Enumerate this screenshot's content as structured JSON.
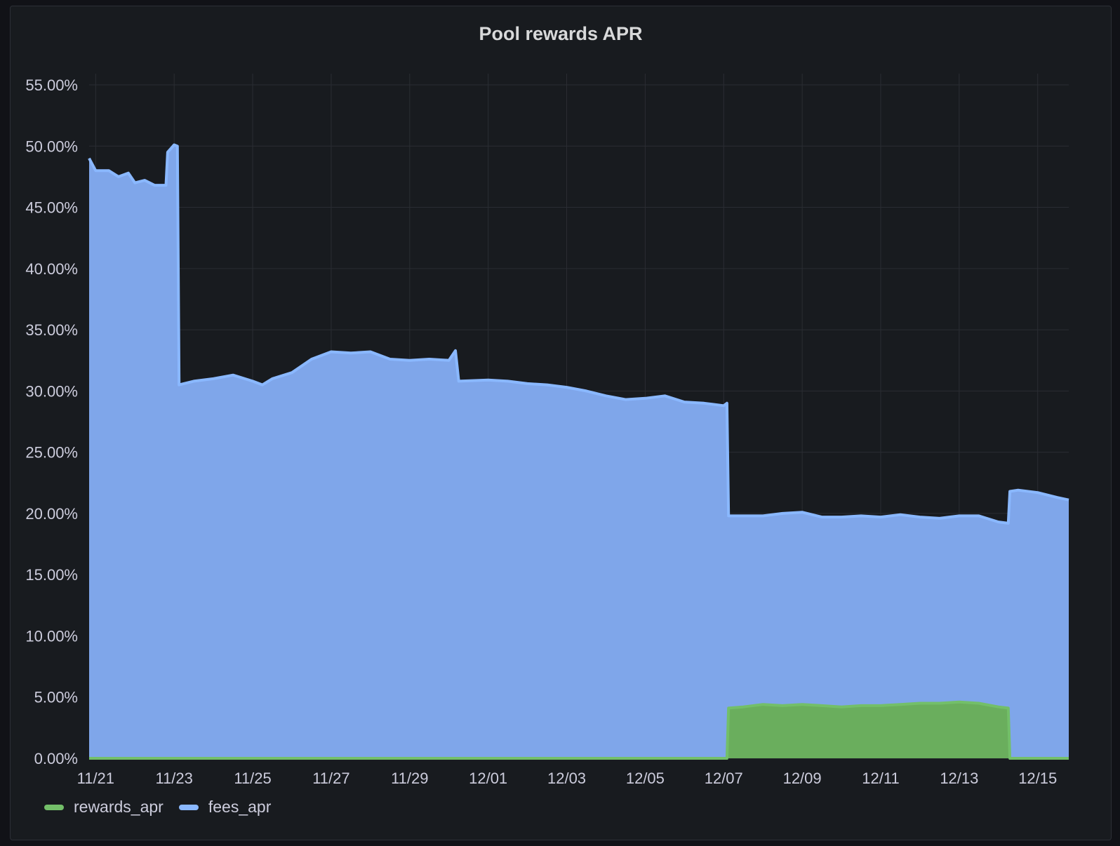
{
  "panel": {
    "title": "Pool rewards APR"
  },
  "colors": {
    "background": "#181b1f",
    "grid": "#2a2d33",
    "text": "#ccccdc",
    "fees_fill": "#7fa6ea",
    "fees_line": "#8ab8ff",
    "rewards_fill": "#6aae5d",
    "rewards_line": "#73bf69"
  },
  "chart_data": {
    "type": "area",
    "title": "Pool rewards APR",
    "xlabel": "",
    "ylabel": "",
    "x_ticks": [
      "11/21",
      "11/23",
      "11/25",
      "11/27",
      "11/29",
      "12/01",
      "12/03",
      "12/05",
      "12/07",
      "12/09",
      "12/11",
      "12/13",
      "12/15"
    ],
    "y_ticks": [
      "0.00%",
      "5.00%",
      "10.00%",
      "15.00%",
      "20.00%",
      "25.00%",
      "30.00%",
      "35.00%",
      "40.00%",
      "45.00%",
      "50.00%",
      "55.00%"
    ],
    "ylim": [
      0,
      55
    ],
    "xlim": [
      "2023-11-20T20:00",
      "2023-12-15T19:00"
    ],
    "x_axis": "date (MM/DD)",
    "y_unit": "%",
    "grid": true,
    "legend_position": "bottom-left",
    "series": [
      {
        "name": "fees_apr",
        "color": "#7fa6ea",
        "points": [
          [
            "2023-11-20T20:00",
            49.0
          ],
          [
            "2023-11-21T00:00",
            48.0
          ],
          [
            "2023-11-21T08:00",
            48.0
          ],
          [
            "2023-11-21T14:00",
            47.5
          ],
          [
            "2023-11-21T20:00",
            47.8
          ],
          [
            "2023-11-22T00:00",
            47.0
          ],
          [
            "2023-11-22T06:00",
            47.2
          ],
          [
            "2023-11-22T12:00",
            46.8
          ],
          [
            "2023-11-22T19:00",
            46.8
          ],
          [
            "2023-11-22T20:00",
            49.5
          ],
          [
            "2023-11-23T00:00",
            50.1
          ],
          [
            "2023-11-23T02:00",
            50.0
          ],
          [
            "2023-11-23T03:00",
            30.5
          ],
          [
            "2023-11-23T12:00",
            30.8
          ],
          [
            "2023-11-24T00:00",
            31.0
          ],
          [
            "2023-11-24T12:00",
            31.3
          ],
          [
            "2023-11-25T00:00",
            30.8
          ],
          [
            "2023-11-25T06:00",
            30.5
          ],
          [
            "2023-11-25T12:00",
            31.0
          ],
          [
            "2023-11-26T00:00",
            31.5
          ],
          [
            "2023-11-26T12:00",
            32.6
          ],
          [
            "2023-11-27T00:00",
            33.2
          ],
          [
            "2023-11-27T12:00",
            33.1
          ],
          [
            "2023-11-28T00:00",
            33.2
          ],
          [
            "2023-11-28T12:00",
            32.6
          ],
          [
            "2023-11-29T00:00",
            32.5
          ],
          [
            "2023-11-29T12:00",
            32.6
          ],
          [
            "2023-11-30T00:00",
            32.5
          ],
          [
            "2023-11-30T04:00",
            33.3
          ],
          [
            "2023-11-30T06:00",
            30.8
          ],
          [
            "2023-12-01T00:00",
            30.9
          ],
          [
            "2023-12-01T12:00",
            30.8
          ],
          [
            "2023-12-02T00:00",
            30.6
          ],
          [
            "2023-12-02T12:00",
            30.5
          ],
          [
            "2023-12-03T00:00",
            30.3
          ],
          [
            "2023-12-03T12:00",
            30.0
          ],
          [
            "2023-12-04T00:00",
            29.6
          ],
          [
            "2023-12-04T12:00",
            29.3
          ],
          [
            "2023-12-05T00:00",
            29.4
          ],
          [
            "2023-12-05T12:00",
            29.6
          ],
          [
            "2023-12-06T00:00",
            29.1
          ],
          [
            "2023-12-06T12:00",
            29.0
          ],
          [
            "2023-12-07T00:00",
            28.8
          ],
          [
            "2023-12-07T02:00",
            29.0
          ],
          [
            "2023-12-07T03:00",
            19.8
          ],
          [
            "2023-12-07T12:00",
            19.8
          ],
          [
            "2023-12-08T00:00",
            19.8
          ],
          [
            "2023-12-08T12:00",
            20.0
          ],
          [
            "2023-12-09T00:00",
            20.1
          ],
          [
            "2023-12-09T12:00",
            19.7
          ],
          [
            "2023-12-10T00:00",
            19.7
          ],
          [
            "2023-12-10T12:00",
            19.8
          ],
          [
            "2023-12-11T00:00",
            19.7
          ],
          [
            "2023-12-11T12:00",
            19.9
          ],
          [
            "2023-12-12T00:00",
            19.7
          ],
          [
            "2023-12-12T12:00",
            19.6
          ],
          [
            "2023-12-13T00:00",
            19.8
          ],
          [
            "2023-12-13T12:00",
            19.8
          ],
          [
            "2023-12-14T00:00",
            19.3
          ],
          [
            "2023-12-14T06:00",
            19.2
          ],
          [
            "2023-12-14T07:00",
            21.8
          ],
          [
            "2023-12-14T12:00",
            21.9
          ],
          [
            "2023-12-15T00:00",
            21.7
          ],
          [
            "2023-12-15T12:00",
            21.3
          ],
          [
            "2023-12-15T19:00",
            21.1
          ]
        ]
      },
      {
        "name": "rewards_apr",
        "color": "#6aae5d",
        "points": [
          [
            "2023-11-20T20:00",
            0.0
          ],
          [
            "2023-12-07T02:00",
            0.0
          ],
          [
            "2023-12-07T03:00",
            4.1
          ],
          [
            "2023-12-07T12:00",
            4.2
          ],
          [
            "2023-12-08T00:00",
            4.4
          ],
          [
            "2023-12-08T12:00",
            4.3
          ],
          [
            "2023-12-09T00:00",
            4.4
          ],
          [
            "2023-12-09T12:00",
            4.3
          ],
          [
            "2023-12-10T00:00",
            4.2
          ],
          [
            "2023-12-10T12:00",
            4.3
          ],
          [
            "2023-12-11T00:00",
            4.3
          ],
          [
            "2023-12-11T12:00",
            4.4
          ],
          [
            "2023-12-12T00:00",
            4.5
          ],
          [
            "2023-12-12T12:00",
            4.5
          ],
          [
            "2023-12-13T00:00",
            4.6
          ],
          [
            "2023-12-13T12:00",
            4.5
          ],
          [
            "2023-12-14T00:00",
            4.2
          ],
          [
            "2023-12-14T06:00",
            4.1
          ],
          [
            "2023-12-14T07:00",
            0.0
          ],
          [
            "2023-12-15T19:00",
            0.0
          ]
        ]
      }
    ]
  },
  "legend": {
    "items": [
      {
        "label": "rewards_apr",
        "color": "#73bf69"
      },
      {
        "label": "fees_apr",
        "color": "#8ab8ff"
      }
    ]
  }
}
